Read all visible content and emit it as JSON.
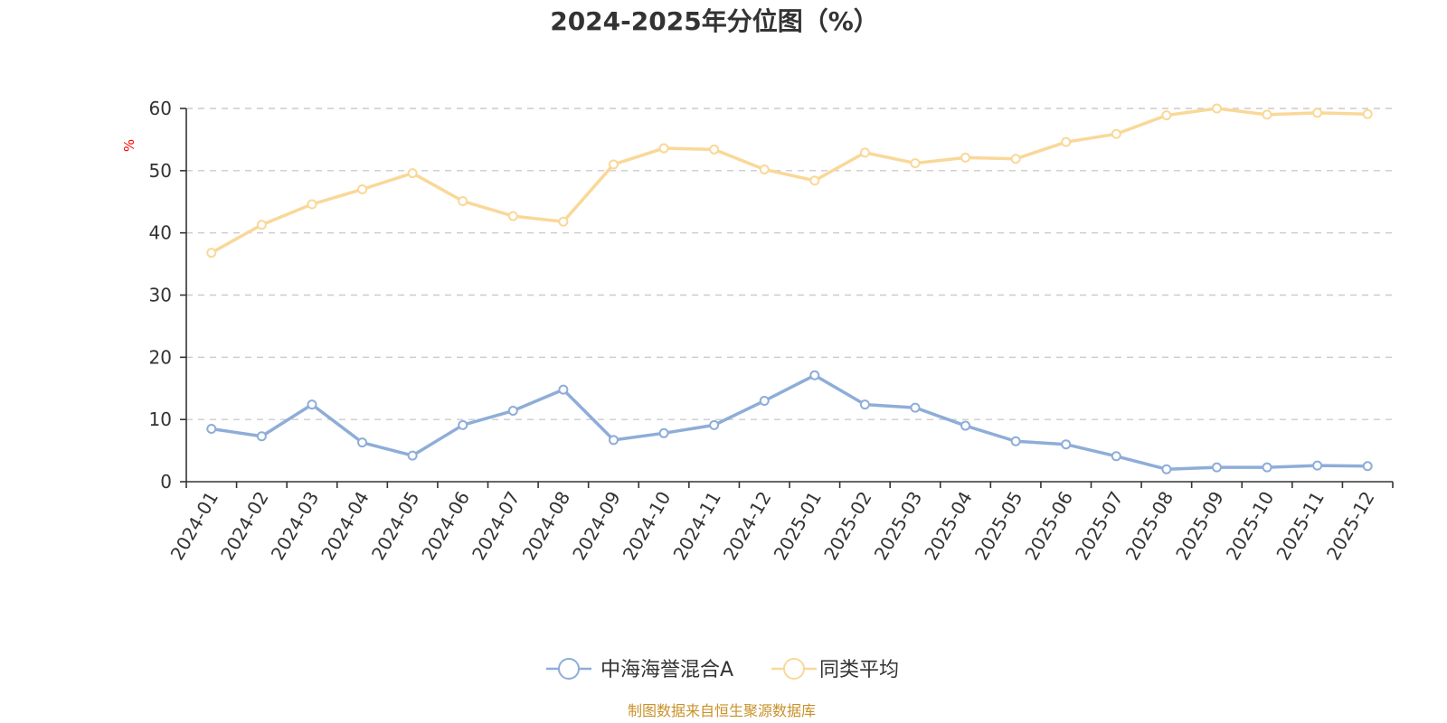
{
  "chart_data": {
    "type": "line",
    "title": "2024-2025年分位图（%）",
    "ylabel": "%",
    "xlabel": "",
    "ylim": [
      0,
      60
    ],
    "yticks": [
      0,
      10,
      20,
      30,
      40,
      50,
      60
    ],
    "grid": true,
    "legend_position": "bottom",
    "categories": [
      "2024-01",
      "2024-02",
      "2024-03",
      "2024-04",
      "2024-05",
      "2024-06",
      "2024-07",
      "2024-08",
      "2024-09",
      "2024-10",
      "2024-11",
      "2024-12",
      "2025-01",
      "2025-02",
      "2025-03",
      "2025-04",
      "2025-05",
      "2025-06",
      "2025-07",
      "2025-08",
      "2025-09",
      "2025-10",
      "2025-11",
      "2025-12"
    ],
    "series": [
      {
        "name": "中海海誉混合A",
        "color": "#8eadd8",
        "values": [
          8.5,
          7.3,
          12.4,
          6.3,
          4.2,
          9.1,
          11.4,
          14.8,
          6.7,
          7.8,
          9.1,
          13.0,
          17.1,
          12.4,
          11.9,
          9.0,
          6.5,
          6.0,
          4.1,
          2.0,
          2.3,
          2.3,
          2.6,
          2.5
        ]
      },
      {
        "name": "同类平均",
        "color": "#f9d898",
        "values": [
          36.8,
          41.3,
          44.6,
          47.0,
          49.6,
          45.1,
          42.7,
          41.8,
          51.0,
          53.6,
          53.4,
          50.2,
          48.4,
          52.9,
          51.2,
          52.1,
          51.9,
          54.6,
          55.9,
          58.9,
          60.0,
          59.0,
          59.3,
          59.1
        ]
      }
    ]
  },
  "footer": {
    "source": "制图数据来自恒生聚源数据库"
  },
  "colors": {
    "text": "#333333",
    "grid": "#cccccc",
    "unit": "#ff0000",
    "source": "#c8922a"
  }
}
